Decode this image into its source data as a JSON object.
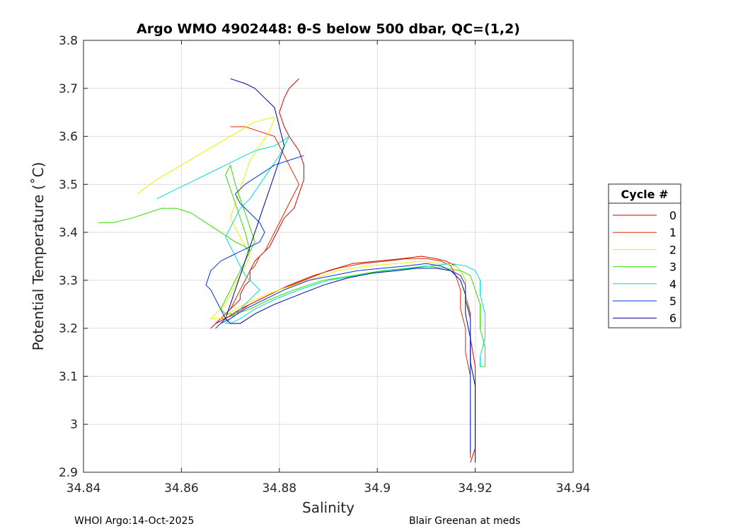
{
  "chart_data": {
    "type": "line",
    "title": "Argo WMO 4902448: θ-S below 500 dbar,  QC=(1,2)",
    "xlabel": "Salinity",
    "ylabel": "Potential Temperature (˚C)",
    "xlim": [
      34.84,
      34.94
    ],
    "ylim": [
      2.9,
      3.8
    ],
    "xticks": [
      34.84,
      34.86,
      34.88,
      34.9,
      34.92,
      34.94
    ],
    "xtick_labels": [
      "34.84",
      "34.86",
      "34.88",
      "34.9",
      "34.92",
      "34.94"
    ],
    "yticks": [
      2.9,
      3.0,
      3.1,
      3.2,
      3.3,
      3.4,
      3.5,
      3.6,
      3.7,
      3.8
    ],
    "ytick_labels": [
      "2.9",
      "3",
      "3.1",
      "3.2",
      "3.3",
      "3.4",
      "3.5",
      "3.6",
      "3.7",
      "3.8"
    ],
    "grid": true,
    "legend_title": "Cycle #",
    "legend_position": "right",
    "series": [
      {
        "name": "0",
        "color": "#cc0000",
        "x": [
          34.884,
          34.883,
          34.882,
          34.881,
          34.88,
          34.881,
          34.882,
          34.884,
          34.885,
          34.885,
          34.884,
          34.883,
          34.881,
          34.88,
          34.879,
          34.878,
          34.876,
          34.875,
          34.874,
          34.874,
          34.873,
          34.872,
          34.872,
          34.871,
          34.87,
          34.869,
          34.868,
          34.867,
          34.866,
          34.867,
          34.869,
          34.872,
          34.876,
          34.88,
          34.885,
          34.89,
          34.895,
          34.9,
          34.905,
          34.909,
          34.912,
          34.914,
          34.916,
          34.917,
          34.918,
          34.918,
          34.919,
          34.919,
          34.92,
          34.92,
          34.92,
          34.92,
          34.919
        ],
        "y": [
          3.72,
          3.71,
          3.7,
          3.68,
          3.65,
          3.62,
          3.6,
          3.57,
          3.54,
          3.51,
          3.48,
          3.45,
          3.43,
          3.41,
          3.39,
          3.37,
          3.35,
          3.34,
          3.32,
          3.3,
          3.29,
          3.27,
          3.26,
          3.25,
          3.24,
          3.23,
          3.22,
          3.21,
          3.2,
          3.21,
          3.22,
          3.24,
          3.26,
          3.28,
          3.3,
          3.32,
          3.335,
          3.34,
          3.345,
          3.35,
          3.345,
          3.34,
          3.33,
          3.32,
          3.3,
          3.27,
          3.23,
          3.18,
          3.12,
          3.06,
          3.0,
          2.95,
          2.92
        ]
      },
      {
        "name": "1",
        "color": "#e02800",
        "x": [
          34.87,
          34.873,
          34.876,
          34.879,
          34.88,
          34.881,
          34.882,
          34.883,
          34.884,
          34.883,
          34.882,
          34.881,
          34.88,
          34.879,
          34.878,
          34.877,
          34.876,
          34.875,
          34.874,
          34.873,
          34.872,
          34.871,
          34.87,
          34.869,
          34.868,
          34.869,
          34.871,
          34.874,
          34.878,
          34.882,
          34.887,
          34.892,
          34.897,
          34.902,
          34.906,
          34.91,
          34.913,
          34.915,
          34.916,
          34.917,
          34.917,
          34.918,
          34.918,
          34.919,
          34.919,
          34.919,
          34.919
        ],
        "y": [
          3.62,
          3.62,
          3.61,
          3.6,
          3.58,
          3.56,
          3.54,
          3.52,
          3.5,
          3.48,
          3.46,
          3.44,
          3.42,
          3.4,
          3.38,
          3.36,
          3.35,
          3.33,
          3.32,
          3.3,
          3.28,
          3.26,
          3.24,
          3.23,
          3.22,
          3.22,
          3.23,
          3.25,
          3.27,
          3.29,
          3.31,
          3.325,
          3.335,
          3.34,
          3.345,
          3.345,
          3.34,
          3.33,
          3.31,
          3.28,
          3.24,
          3.2,
          3.15,
          3.1,
          3.05,
          3.0,
          2.93
        ]
      },
      {
        "name": "2",
        "color": "#eeee00",
        "x": [
          34.851,
          34.855,
          34.86,
          34.865,
          34.87,
          34.875,
          34.879,
          34.878,
          34.876,
          34.874,
          34.873,
          34.872,
          34.871,
          34.87,
          34.871,
          34.872,
          34.873,
          34.874,
          34.873,
          34.872,
          34.871,
          34.87,
          34.869,
          34.868,
          34.867,
          34.866,
          34.868,
          34.871,
          34.875,
          34.88,
          34.886,
          34.892,
          34.898,
          34.904,
          34.909,
          34.913,
          34.916,
          34.917,
          34.918,
          34.918,
          34.919,
          34.919,
          34.919,
          34.919
        ],
        "y": [
          3.48,
          3.51,
          3.54,
          3.57,
          3.6,
          3.63,
          3.64,
          3.61,
          3.58,
          3.55,
          3.52,
          3.49,
          3.46,
          3.43,
          3.41,
          3.39,
          3.37,
          3.35,
          3.33,
          3.31,
          3.29,
          3.27,
          3.25,
          3.24,
          3.23,
          3.22,
          3.22,
          3.24,
          3.26,
          3.28,
          3.3,
          3.32,
          3.33,
          3.335,
          3.34,
          3.335,
          3.33,
          3.32,
          3.3,
          3.27,
          3.22,
          3.17,
          3.1,
          3.04
        ]
      },
      {
        "name": "3",
        "color": "#33dd00",
        "x": [
          34.843,
          34.846,
          34.85,
          34.853,
          34.856,
          34.859,
          34.862,
          34.865,
          34.868,
          34.871,
          34.873,
          34.874,
          34.873,
          34.872,
          34.871,
          34.87,
          34.869,
          34.87,
          34.871,
          34.872,
          34.873,
          34.874,
          34.875,
          34.874,
          34.873,
          34.872,
          34.871,
          34.87,
          34.869,
          34.868,
          34.869,
          34.871,
          34.874,
          34.878,
          34.883,
          34.889,
          34.895,
          34.901,
          34.906,
          34.91,
          34.914,
          34.917,
          34.919,
          34.92,
          34.921,
          34.921,
          34.922,
          34.922,
          34.921
        ],
        "y": [
          3.42,
          3.42,
          3.43,
          3.44,
          3.45,
          3.45,
          3.44,
          3.42,
          3.4,
          3.38,
          3.37,
          3.36,
          3.4,
          3.43,
          3.46,
          3.49,
          3.52,
          3.54,
          3.5,
          3.47,
          3.44,
          3.41,
          3.38,
          3.36,
          3.34,
          3.32,
          3.3,
          3.28,
          3.26,
          3.24,
          3.23,
          3.23,
          3.24,
          3.26,
          3.28,
          3.3,
          3.31,
          3.32,
          3.325,
          3.33,
          3.325,
          3.32,
          3.31,
          3.28,
          3.25,
          3.2,
          3.16,
          3.12,
          3.12
        ]
      },
      {
        "name": "4",
        "color": "#00dddd",
        "x": [
          34.855,
          34.859,
          34.863,
          34.867,
          34.871,
          34.875,
          34.879,
          34.882,
          34.88,
          34.878,
          34.876,
          34.874,
          34.872,
          34.871,
          34.87,
          34.869,
          34.87,
          34.871,
          34.872,
          34.873,
          34.874,
          34.875,
          34.876,
          34.875,
          34.874,
          34.873,
          34.872,
          34.871,
          34.87,
          34.869,
          34.87,
          34.872,
          34.875,
          34.879,
          34.884,
          34.89,
          34.896,
          34.902,
          34.907,
          34.911,
          34.915,
          34.918,
          34.92,
          34.921,
          34.921,
          34.922,
          34.922,
          34.921,
          34.921
        ],
        "y": [
          3.47,
          3.49,
          3.51,
          3.53,
          3.55,
          3.57,
          3.58,
          3.6,
          3.56,
          3.53,
          3.5,
          3.47,
          3.45,
          3.43,
          3.41,
          3.39,
          3.37,
          3.35,
          3.33,
          3.31,
          3.3,
          3.29,
          3.28,
          3.27,
          3.26,
          3.25,
          3.24,
          3.23,
          3.22,
          3.21,
          3.21,
          3.22,
          3.24,
          3.26,
          3.28,
          3.3,
          3.31,
          3.32,
          3.325,
          3.33,
          3.335,
          3.33,
          3.32,
          3.3,
          3.27,
          3.23,
          3.18,
          3.14,
          3.12
        ]
      },
      {
        "name": "5",
        "color": "#0033ee",
        "x": [
          34.885,
          34.882,
          34.879,
          34.876,
          34.873,
          34.871,
          34.872,
          34.874,
          34.876,
          34.877,
          34.876,
          34.874,
          34.872,
          34.87,
          34.868,
          34.866,
          34.865,
          34.866,
          34.867,
          34.868,
          34.869,
          34.868,
          34.867,
          34.868,
          34.87,
          34.873,
          34.877,
          34.881,
          34.886,
          34.891,
          34.896,
          34.901,
          34.906,
          34.91,
          34.913,
          34.915,
          34.917,
          34.918,
          34.918,
          34.919,
          34.919,
          34.919,
          34.919,
          34.919,
          34.919
        ],
        "y": [
          3.56,
          3.55,
          3.54,
          3.52,
          3.5,
          3.48,
          3.46,
          3.44,
          3.42,
          3.4,
          3.38,
          3.37,
          3.36,
          3.35,
          3.34,
          3.32,
          3.29,
          3.28,
          3.26,
          3.24,
          3.22,
          3.21,
          3.2,
          3.21,
          3.22,
          3.24,
          3.26,
          3.28,
          3.3,
          3.31,
          3.32,
          3.325,
          3.33,
          3.335,
          3.33,
          3.32,
          3.31,
          3.29,
          3.26,
          3.22,
          3.17,
          3.12,
          3.06,
          3.0,
          2.94
        ]
      },
      {
        "name": "6",
        "color": "#000099",
        "x": [
          34.87,
          34.873,
          34.875,
          34.877,
          34.879,
          34.88,
          34.881,
          34.88,
          34.879,
          34.878,
          34.877,
          34.876,
          34.875,
          34.874,
          34.873,
          34.872,
          34.871,
          34.87,
          34.869,
          34.87,
          34.872,
          34.875,
          34.879,
          34.884,
          34.889,
          34.894,
          34.899,
          34.904,
          34.908,
          34.912,
          34.915,
          34.917,
          34.918,
          34.918,
          34.919,
          34.919,
          34.92,
          34.92,
          34.92,
          34.92,
          34.92
        ],
        "y": [
          3.72,
          3.71,
          3.7,
          3.68,
          3.66,
          3.62,
          3.58,
          3.55,
          3.52,
          3.49,
          3.46,
          3.43,
          3.4,
          3.37,
          3.34,
          3.31,
          3.28,
          3.25,
          3.22,
          3.21,
          3.21,
          3.23,
          3.25,
          3.27,
          3.29,
          3.305,
          3.315,
          3.32,
          3.325,
          3.325,
          3.32,
          3.3,
          3.27,
          3.23,
          3.18,
          3.13,
          3.08,
          3.03,
          2.99,
          2.95,
          2.92
        ]
      }
    ]
  },
  "footer": {
    "left": "WHOI Argo:14-Oct-2025",
    "right": "Blair Greenan at meds"
  }
}
